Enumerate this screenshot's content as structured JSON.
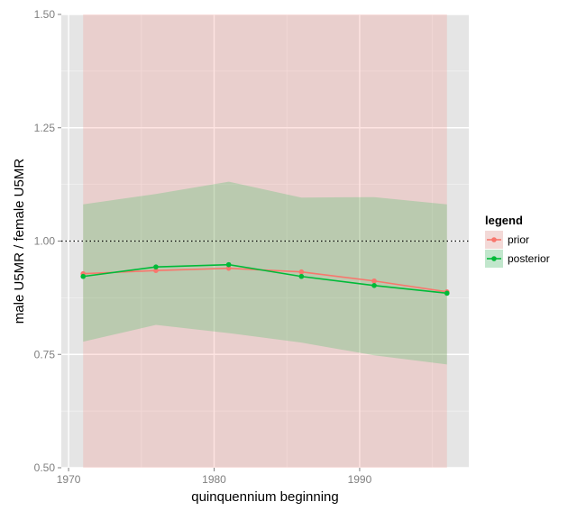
{
  "chart_data": {
    "type": "line",
    "xlabel": "quinquennium beginning",
    "ylabel": "male U5MR / female U5MR",
    "xlim": [
      1969.5,
      1997.5
    ],
    "ylim": [
      0.5,
      1.5
    ],
    "x_ticks": [
      1970,
      1980,
      1990
    ],
    "x_tick_labels": [
      "1970",
      "1980",
      "1990"
    ],
    "y_ticks": [
      0.5,
      0.75,
      1.0,
      1.25,
      1.5
    ],
    "y_tick_labels": [
      "0.50",
      "0.75",
      "1.00",
      "1.25",
      "1.50"
    ],
    "x": [
      1971,
      1976,
      1981,
      1986,
      1991,
      1996
    ],
    "reference_line": {
      "y": 1.0,
      "style": "dotted",
      "color": "#000000"
    },
    "grid": true,
    "legend": {
      "title": "legend",
      "position": "right"
    },
    "series": [
      {
        "name": "prior",
        "color": "#F8766D",
        "values": [
          0.928,
          0.935,
          0.94,
          0.932,
          0.912,
          0.888
        ],
        "band_lower": [
          0.5,
          0.5,
          0.5,
          0.5,
          0.5,
          0.5
        ],
        "band_upper": [
          1.5,
          1.5,
          1.5,
          1.5,
          1.5,
          1.5
        ]
      },
      {
        "name": "posterior",
        "color": "#00BA38",
        "values": [
          0.922,
          0.943,
          0.948,
          0.922,
          0.902,
          0.885
        ],
        "band_lower": [
          0.778,
          0.815,
          0.797,
          0.776,
          0.748,
          0.728
        ],
        "band_upper": [
          1.081,
          1.104,
          1.131,
          1.096,
          1.097,
          1.081
        ]
      }
    ]
  }
}
